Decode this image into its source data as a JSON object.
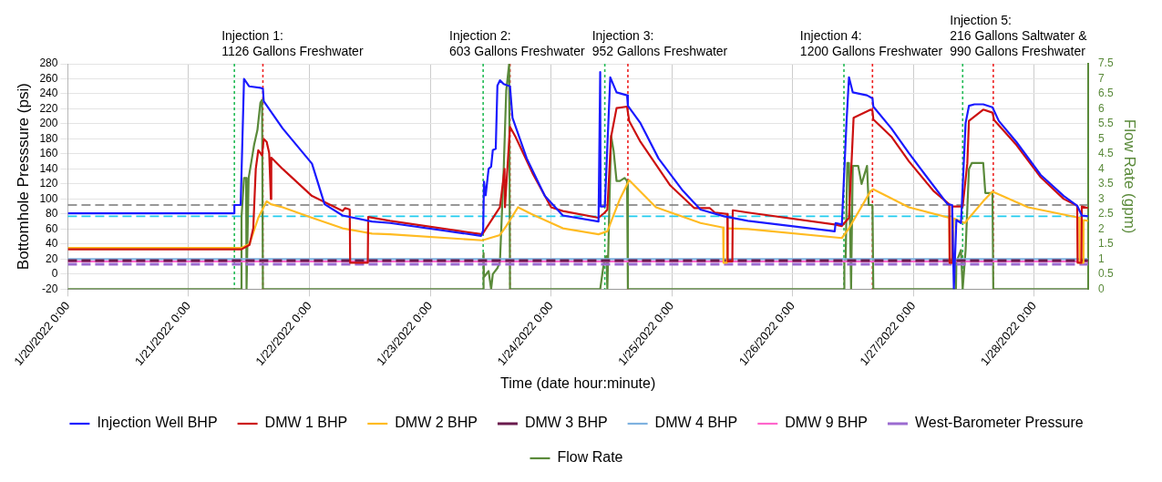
{
  "chart_data": {
    "type": "line",
    "xlabel": "Time (date hour:minute)",
    "ylabel": "Bottomhole Presssure (psi)",
    "y2label": "Flow Rate (gpm)",
    "xlim": [
      "2022-01-20T00:00",
      "2022-01-28T10:40"
    ],
    "xticks": [
      {
        "value": "2022-01-20T00:00",
        "label": "1/20/2022 0:00"
      },
      {
        "value": "2022-01-21T00:00",
        "label": "1/21/2022 0:00"
      },
      {
        "value": "2022-01-22T00:00",
        "label": "1/22/2022 0:00"
      },
      {
        "value": "2022-01-23T00:00",
        "label": "1/23/2022 0:00"
      },
      {
        "value": "2022-01-24T00:00",
        "label": "1/24/2022 0:00"
      },
      {
        "value": "2022-01-25T00:00",
        "label": "1/25/2022 0:00"
      },
      {
        "value": "2022-01-26T00:00",
        "label": "1/26/2022 0:00"
      },
      {
        "value": "2022-01-27T00:00",
        "label": "1/27/2022 0:00"
      },
      {
        "value": "2022-01-28T00:00",
        "label": "1/28/2022 0:00"
      }
    ],
    "ylim": [
      -20,
      280
    ],
    "yticks": [
      -20,
      0,
      20,
      40,
      60,
      80,
      100,
      120,
      140,
      160,
      180,
      200,
      220,
      240,
      260,
      280
    ],
    "y2lim": [
      0,
      7.5
    ],
    "y2ticks": [
      0,
      0.5,
      1,
      1.5,
      2,
      2.5,
      3,
      3.5,
      4,
      4.5,
      5,
      5.5,
      6,
      6.5,
      7,
      7.5
    ],
    "grid": true,
    "legend": "bottom",
    "marker": "none",
    "line_style": "solid",
    "annotations": [
      "Injection 1:\n1126 Gallons Freshwater",
      "Injection 2:\n603 Gallons Freshwater",
      "Injection 3:\n952 Gallons Freshwater",
      "Injection 4:\n1200 Gallons Freshwater",
      "Injection 5:\n216 Gallons Saltwater &\n990 Gallons Freshwater"
    ],
    "ref_lines": [
      {
        "axis": "x",
        "value": "2022-01-21T09:05",
        "color": "#22bb55",
        "line_style": "dotted"
      },
      {
        "axis": "x",
        "value": "2022-01-21T14:45",
        "color": "#ee2222",
        "line_style": "dotted"
      },
      {
        "axis": "x",
        "value": "2022-01-23T10:30",
        "color": "#22bb55",
        "line_style": "dotted"
      },
      {
        "axis": "x",
        "value": "2022-01-23T15:50",
        "color": "#ee2222",
        "line_style": "dotted"
      },
      {
        "axis": "x",
        "value": "2022-01-24T10:40",
        "color": "#22bb55",
        "line_style": "dotted"
      },
      {
        "axis": "x",
        "value": "2022-01-24T15:15",
        "color": "#ee2222",
        "line_style": "dotted"
      },
      {
        "axis": "x",
        "value": "2022-01-26T10:10",
        "color": "#22bb55",
        "line_style": "dotted"
      },
      {
        "axis": "x",
        "value": "2022-01-26T15:50",
        "color": "#ee2222",
        "line_style": "dotted"
      },
      {
        "axis": "x",
        "value": "2022-01-27T09:45",
        "color": "#22bb55",
        "line_style": "dotted"
      },
      {
        "axis": "x",
        "value": "2022-01-27T15:50",
        "color": "#ee2222",
        "line_style": "dotted"
      },
      {
        "axis": "y",
        "value": 92,
        "color": "#777777",
        "line_style": "dashed"
      },
      {
        "axis": "y",
        "value": 77,
        "color": "#22ccee",
        "line_style": "dashed"
      }
    ],
    "series": [
      {
        "name": "Injection Well BHP",
        "color": "#1a1aff",
        "x": [
          "2022-01-20T00:00",
          "2022-01-21T09:05",
          "2022-01-21T09:05",
          "2022-01-21T10:20",
          "2022-01-21T11:00",
          "2022-01-21T12:00",
          "2022-01-21T14:15",
          "2022-01-21T14:45",
          "2022-01-21T14:55",
          "2022-01-21T18:40",
          "2022-01-22T00:30",
          "2022-01-22T03:00",
          "2022-01-22T06:35",
          "2022-01-22T12:25",
          "2022-01-22T16:00",
          "2022-01-23T10:05",
          "2022-01-23T10:30",
          "2022-01-23T10:40",
          "2022-01-23T11:00",
          "2022-01-23T11:35",
          "2022-01-23T12:05",
          "2022-01-23T12:25",
          "2022-01-23T13:00",
          "2022-01-23T13:20",
          "2022-01-23T13:50",
          "2022-01-23T14:35",
          "2022-01-23T15:50",
          "2022-01-23T16:20",
          "2022-01-23T19:10",
          "2022-01-23T22:45",
          "2022-01-24T02:20",
          "2022-01-24T09:25",
          "2022-01-24T09:45",
          "2022-01-24T09:50",
          "2022-01-24T10:40",
          "2022-01-24T11:45",
          "2022-01-24T13:00",
          "2022-01-24T15:05",
          "2022-01-24T15:15",
          "2022-01-24T17:45",
          "2022-01-24T21:20",
          "2022-01-25T02:10",
          "2022-01-25T05:40",
          "2022-01-25T10:20",
          "2022-01-25T15:05",
          "2022-01-26T08:20",
          "2022-01-26T08:30",
          "2022-01-26T09:45",
          "2022-01-26T10:40",
          "2022-01-26T11:10",
          "2022-01-26T11:55",
          "2022-01-26T14:45",
          "2022-01-26T15:50",
          "2022-01-26T16:00",
          "2022-01-26T19:35",
          "2022-01-26T23:05",
          "2022-01-27T02:40",
          "2022-01-27T06:45",
          "2022-01-27T07:40",
          "2022-01-27T08:00",
          "2022-01-27T08:30",
          "2022-01-27T09:25",
          "2022-01-27T10:20",
          "2022-01-27T11:00",
          "2022-01-27T12:05",
          "2022-01-27T13:50",
          "2022-01-27T15:40",
          "2022-01-27T16:55",
          "2022-01-27T20:25",
          "2022-01-28T01:15",
          "2022-01-28T05:50",
          "2022-01-28T08:30",
          "2022-01-28T09:25",
          "2022-01-28T10:40"
        ],
        "values": [
          81,
          81,
          92,
          92,
          260,
          250,
          248,
          247,
          230,
          194,
          147,
          93,
          78,
          70,
          68,
          51,
          58,
          123,
          105,
          140,
          143,
          165,
          167,
          251,
          258,
          253,
          250,
          208,
          154,
          104,
          78,
          70,
          269,
          90,
          90,
          262,
          242,
          238,
          224,
          201,
          154,
          111,
          86,
          77,
          71,
          57,
          68,
          66,
          201,
          262,
          242,
          238,
          234,
          223,
          194,
          161,
          129,
          93,
          92,
          -20,
          72,
          68,
          201,
          224,
          226,
          226,
          222,
          204,
          176,
          132,
          104,
          91,
          78,
          77
        ]
      },
      {
        "name": "DMW 1 BHP",
        "color": "#cc1111",
        "x": [
          "2022-01-20T00:00",
          "2022-01-21T10:30",
          "2022-01-21T12:05",
          "2022-01-21T12:50",
          "2022-01-21T13:20",
          "2022-01-21T13:50",
          "2022-01-21T14:35",
          "2022-01-21T14:55",
          "2022-01-21T15:30",
          "2022-01-21T16:00",
          "2022-01-21T16:20",
          "2022-01-21T16:25",
          "2022-01-21T18:40",
          "2022-01-22T00:30",
          "2022-01-22T06:35",
          "2022-01-22T07:05",
          "2022-01-22T08:00",
          "2022-01-22T08:05",
          "2022-01-22T11:35",
          "2022-01-22T11:40",
          "2022-01-22T16:00",
          "2022-01-23T10:20",
          "2022-01-23T13:50",
          "2022-01-23T14:45",
          "2022-01-23T14:50",
          "2022-01-23T15:50",
          "2022-01-23T16:55",
          "2022-01-23T20:25",
          "2022-01-24T00:00",
          "2022-01-24T02:20",
          "2022-01-24T09:25",
          "2022-01-24T10:40",
          "2022-01-24T11:10",
          "2022-01-24T11:55",
          "2022-01-24T13:00",
          "2022-01-24T15:05",
          "2022-01-24T15:30",
          "2022-01-24T17:45",
          "2022-01-24T23:40",
          "2022-01-25T04:25",
          "2022-01-25T07:30",
          "2022-01-25T08:30",
          "2022-01-25T11:00",
          "2022-01-25T11:05",
          "2022-01-25T12:00",
          "2022-01-25T12:05",
          "2022-01-25T15:05",
          "2022-01-26T08:20",
          "2022-01-26T09:45",
          "2022-01-26T11:10",
          "2022-01-26T12:05",
          "2022-01-26T15:30",
          "2022-01-26T15:50",
          "2022-01-26T16:00",
          "2022-01-26T19:35",
          "2022-01-26T23:05",
          "2022-01-27T03:55",
          "2022-01-27T07:05",
          "2022-01-27T07:10",
          "2022-01-27T07:35",
          "2022-01-27T07:40",
          "2022-01-27T09:45",
          "2022-01-27T10:40",
          "2022-01-27T11:00",
          "2022-01-27T13:50",
          "2022-01-27T15:40",
          "2022-01-27T16:00",
          "2022-01-27T20:25",
          "2022-01-28T01:15",
          "2022-01-28T05:50",
          "2022-01-28T08:30",
          "2022-01-28T08:35",
          "2022-01-28T09:20",
          "2022-01-28T09:25",
          "2022-01-28T10:40"
        ],
        "values": [
          33,
          33,
          39,
          61,
          140,
          165,
          158,
          180,
          176,
          161,
          100,
          155,
          140,
          104,
          84,
          88,
          86,
          15,
          15,
          76,
          71,
          53,
          89,
          140,
          89,
          196,
          183,
          133,
          89,
          84,
          75,
          82,
          86,
          183,
          221,
          223,
          204,
          176,
          118,
          88,
          88,
          82,
          80,
          17,
          17,
          85,
          82,
          66,
          64,
          75,
          208,
          219,
          217,
          206,
          183,
          150,
          111,
          93,
          15,
          15,
          90,
          90,
          147,
          204,
          219,
          215,
          205,
          172,
          129,
          100,
          91,
          15,
          15,
          90,
          88
        ]
      },
      {
        "name": "DMW 2 BHP",
        "color": "#ffbb22",
        "x": [
          "2022-01-20T00:00",
          "2022-01-21T10:30",
          "2022-01-21T12:05",
          "2022-01-21T13:50",
          "2022-01-21T15:30",
          "2022-01-21T16:20",
          "2022-01-21T18:40",
          "2022-01-22T00:30",
          "2022-01-22T06:35",
          "2022-01-22T12:25",
          "2022-01-22T16:00",
          "2022-01-23T10:20",
          "2022-01-23T13:50",
          "2022-01-23T15:05",
          "2022-01-23T17:25",
          "2022-01-23T20:25",
          "2022-01-24T02:20",
          "2022-01-24T09:25",
          "2022-01-24T11:10",
          "2022-01-24T13:40",
          "2022-01-24T15:30",
          "2022-01-24T20:50",
          "2022-01-25T05:40",
          "2022-01-25T10:10",
          "2022-01-25T10:15",
          "2022-01-25T10:55",
          "2022-01-25T11:00",
          "2022-01-25T15:05",
          "2022-01-26T09:45",
          "2022-01-26T11:10",
          "2022-01-26T15:30",
          "2022-01-26T16:00",
          "2022-01-26T23:05",
          "2022-01-27T07:05",
          "2022-01-27T07:10",
          "2022-01-27T07:40",
          "2022-01-27T08:00",
          "2022-01-27T10:10",
          "2022-01-27T13:50",
          "2022-01-27T15:40",
          "2022-01-27T22:45",
          "2022-01-28T08:55",
          "2022-01-28T09:00",
          "2022-01-28T09:40",
          "2022-01-28T09:45",
          "2022-01-28T10:40"
        ],
        "values": [
          35,
          35,
          40,
          75,
          97,
          93,
          89,
          75,
          61,
          54,
          53,
          45,
          52,
          64,
          89,
          79,
          61,
          53,
          57,
          100,
          125,
          89,
          68,
          62,
          15,
          15,
          61,
          60,
          48,
          61,
          111,
          113,
          89,
          75,
          15,
          15,
          74,
          68,
          97,
          110,
          89,
          75,
          15,
          15,
          72,
          71
        ]
      },
      {
        "name": "DMW 3 BHP",
        "color": "#6a1b4d",
        "line_style": "dashed",
        "x": [
          "2022-01-20T00:00",
          "2022-01-28T10:40"
        ],
        "values": [
          18,
          18
        ]
      },
      {
        "name": "DMW 4 BHP",
        "color": "#7fb2e0",
        "x": [
          "2022-01-20T00:00",
          "2022-01-28T10:40"
        ],
        "values": [
          20,
          20
        ]
      },
      {
        "name": "DMW 9 BHP",
        "color": "#ff66cc",
        "x": [
          "2022-01-20T00:00",
          "2022-01-28T10:40"
        ],
        "values": [
          17,
          17
        ]
      },
      {
        "name": "West-Barometer Pressure",
        "color": "#9b6bd0",
        "line_style": "dashed",
        "x": [
          "2022-01-20T00:00",
          "2022-01-28T10:40"
        ],
        "values": [
          13,
          13
        ]
      },
      {
        "name": "Flow Rate",
        "color": "#5a8a3a",
        "axis": "y2",
        "x": [
          "2022-01-20T00:00",
          "2022-01-21T10:20",
          "2022-01-21T10:30",
          "2022-01-21T11:00",
          "2022-01-21T11:25",
          "2022-01-21T11:30",
          "2022-01-21T11:55",
          "2022-01-21T12:25",
          "2022-01-21T13:00",
          "2022-01-21T13:40",
          "2022-01-21T14:15",
          "2022-01-21T14:35",
          "2022-01-21T14:45",
          "2022-01-23T10:30",
          "2022-01-23T10:35",
          "2022-01-23T10:40",
          "2022-01-23T11:35",
          "2022-01-23T12:05",
          "2022-01-23T12:25",
          "2022-01-23T13:20",
          "2022-01-23T13:50",
          "2022-01-23T14:35",
          "2022-01-23T15:05",
          "2022-01-23T15:40",
          "2022-01-23T15:50",
          "2022-01-24T09:45",
          "2022-01-24T10:30",
          "2022-01-24T11:00",
          "2022-01-24T11:10",
          "2022-01-24T11:55",
          "2022-01-24T12:25",
          "2022-01-24T13:00",
          "2022-01-24T13:40",
          "2022-01-24T14:35",
          "2022-01-24T15:05",
          "2022-01-24T15:15",
          "2022-01-26T10:10",
          "2022-01-26T10:15",
          "2022-01-26T10:30",
          "2022-01-26T10:50",
          "2022-01-26T11:10",
          "2022-01-26T11:35",
          "2022-01-26T11:55",
          "2022-01-26T13:00",
          "2022-01-26T13:40",
          "2022-01-26T14:45",
          "2022-01-26T15:05",
          "2022-01-26T15:50",
          "2022-01-26T16:00",
          "2022-01-27T08:25",
          "2022-01-27T08:30",
          "2022-01-27T09:25",
          "2022-01-27T09:45",
          "2022-01-27T10:20",
          "2022-01-27T11:00",
          "2022-01-27T11:35",
          "2022-01-27T13:20",
          "2022-01-27T13:50",
          "2022-01-27T14:15",
          "2022-01-27T15:40",
          "2022-01-27T15:50",
          "2022-01-28T10:40"
        ],
        "values": [
          0,
          0,
          2.4,
          3.7,
          3.7,
          0,
          3.7,
          4.2,
          4.8,
          5.3,
          6.2,
          6.3,
          0,
          0,
          1.2,
          0.4,
          0.6,
          0,
          0.5,
          0.7,
          0.9,
          4.0,
          6.6,
          7.5,
          0,
          0,
          0.9,
          1.1,
          0,
          5.1,
          4.6,
          3.6,
          3.6,
          3.7,
          3.6,
          0,
          0,
          0.9,
          1.0,
          4.2,
          4.2,
          0,
          4.1,
          4.1,
          3.5,
          4.1,
          2.8,
          2.8,
          0,
          0,
          0.9,
          1.3,
          0,
          1.3,
          4.0,
          4.2,
          4.2,
          4.2,
          3.2,
          3.2,
          0,
          0
        ]
      }
    ]
  }
}
